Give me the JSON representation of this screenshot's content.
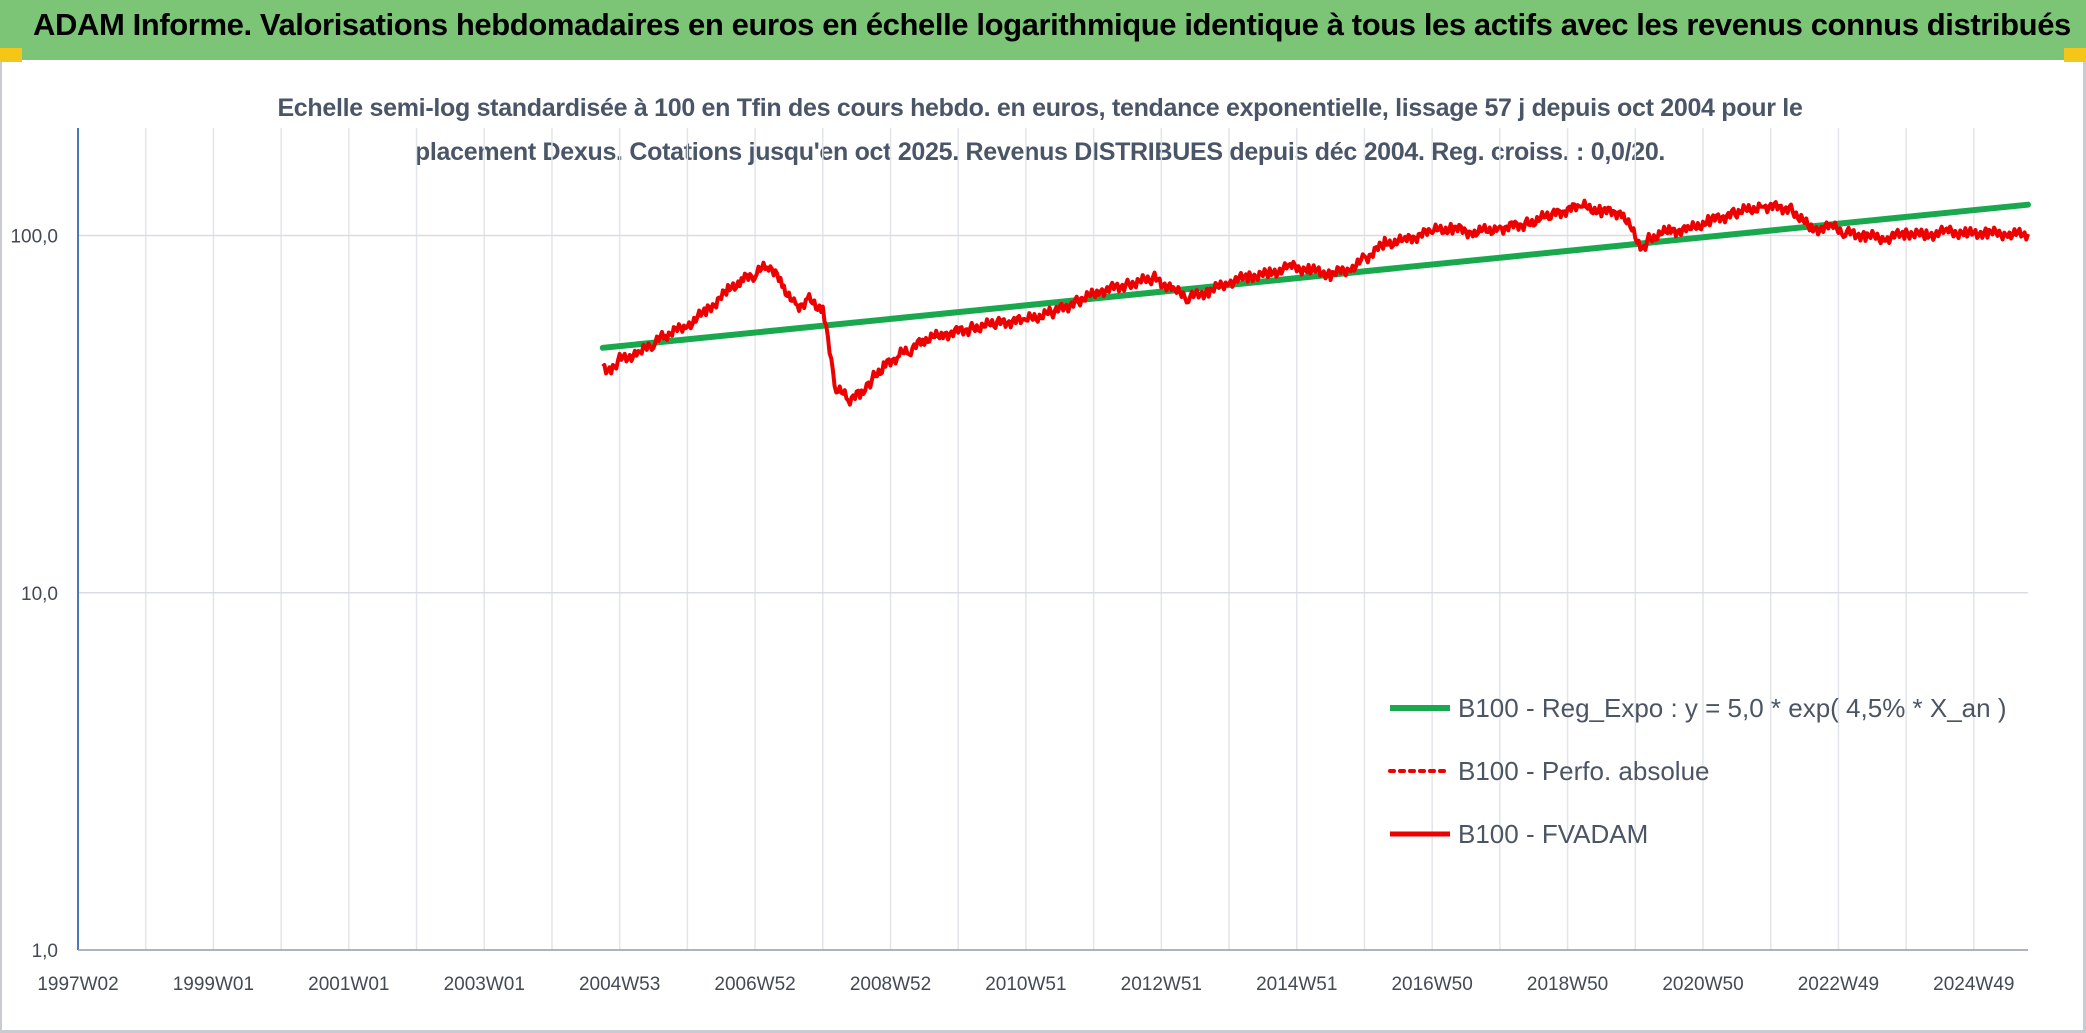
{
  "header": {
    "title": "ADAM Informe. Valorisations hebdomadaires en euros en échelle logarithmique identique à tous les actifs avec les revenus connus distribués"
  },
  "colors": {
    "banner": "#7cc576",
    "corner_accent": "#f5c518",
    "trend": "#1aa84e",
    "series": "#ee0000",
    "axis_text": "#444a55"
  },
  "chart_data": {
    "type": "line",
    "title_lines": [
      "Echelle semi-log standardisée à 100 en Tfin des cours hebdo. en euros, tendance exponentielle, lissage 57 j depuis oct 2004 pour le",
      "placement Dexus. Cotations jusqu'en oct 2025. Revenus DISTRIBUES depuis déc 2004. Reg. croiss. : 0,0/20."
    ],
    "y_scale": "log",
    "ylim": [
      1,
      200
    ],
    "y_ticks": [
      {
        "value": 1,
        "label": "1,0"
      },
      {
        "value": 10,
        "label": "10,0"
      },
      {
        "value": 100,
        "label": "100,0"
      }
    ],
    "xlim": [
      1997.0,
      2025.8
    ],
    "x_ticks": [
      {
        "value": 1997.0,
        "label": "1997W02"
      },
      {
        "value": 1999.0,
        "label": "1999W01"
      },
      {
        "value": 2001.0,
        "label": "2001W01"
      },
      {
        "value": 2003.0,
        "label": "2003W01"
      },
      {
        "value": 2005.0,
        "label": "2004W53"
      },
      {
        "value": 2007.0,
        "label": "2006W52"
      },
      {
        "value": 2009.0,
        "label": "2008W52"
      },
      {
        "value": 2011.0,
        "label": "2010W51"
      },
      {
        "value": 2013.0,
        "label": "2012W51"
      },
      {
        "value": 2015.0,
        "label": "2014W51"
      },
      {
        "value": 2017.0,
        "label": "2016W50"
      },
      {
        "value": 2019.0,
        "label": "2018W50"
      },
      {
        "value": 2021.0,
        "label": "2020W50"
      },
      {
        "value": 2023.0,
        "label": "2022W49"
      },
      {
        "value": 2025.0,
        "label": "2024W49"
      }
    ],
    "minor_gridlines": true,
    "legend_position": "lower-right",
    "series": [
      {
        "name": "B100 - Reg_Expo : y = 5,0 * exp( 4,5% *  X_an )",
        "style": "solid-thick",
        "color": "#1aa84e",
        "x": [
          2004.75,
          2025.8
        ],
        "y": [
          48.5,
          122
        ]
      },
      {
        "name": "B100 - Perfo. absolue",
        "style": "dotted",
        "color": "#ee0000",
        "x": [],
        "y": []
      },
      {
        "name": "B100 - FVADAM",
        "style": "solid",
        "color": "#ee0000",
        "x": [
          2004.75,
          2004.9,
          2005.0,
          2005.3,
          2005.5,
          2005.7,
          2006.0,
          2006.3,
          2006.6,
          2006.8,
          2007.0,
          2007.2,
          2007.4,
          2007.6,
          2007.8,
          2008.0,
          2008.2,
          2008.4,
          2008.55,
          2008.65,
          2008.75,
          2008.9,
          2009.1,
          2009.3,
          2009.5,
          2009.8,
          2010.2,
          2010.6,
          2011.0,
          2011.4,
          2011.8,
          2012.1,
          2012.5,
          2012.9,
          2013.2,
          2013.4,
          2013.7,
          2014.0,
          2014.3,
          2014.6,
          2014.9,
          2015.2,
          2015.5,
          2015.8,
          2016.0,
          2016.3,
          2016.6,
          2017.0,
          2017.3,
          2017.6,
          2018.0,
          2018.4,
          2018.8,
          2019.2,
          2019.5,
          2019.8,
          2020.1,
          2020.2,
          2020.5,
          2020.8,
          2021.1,
          2021.5,
          2021.9,
          2022.3,
          2022.6,
          2022.9,
          2023.1,
          2023.4,
          2023.7,
          2024.0,
          2024.3,
          2024.6,
          2024.9,
          2025.2,
          2025.5,
          2025.8
        ],
        "y": [
          43,
          42,
          45,
          47,
          50,
          53,
          56,
          62,
          70,
          75,
          78,
          83,
          73,
          63,
          66,
          62,
          37,
          35,
          36,
          38,
          40,
          43,
          46,
          48,
          51,
          53,
          55,
          57,
          58,
          61,
          66,
          70,
          73,
          76,
          70,
          67,
          70,
          74,
          77,
          78,
          82,
          80,
          78,
          81,
          86,
          95,
          97,
          103,
          105,
          102,
          105,
          108,
          115,
          121,
          117,
          116,
          92,
          98,
          103,
          104,
          110,
          116,
          121,
          119,
          104,
          106,
          102,
          100,
          98,
          102,
          100,
          103,
          101,
          102,
          101,
          101
        ]
      }
    ]
  }
}
